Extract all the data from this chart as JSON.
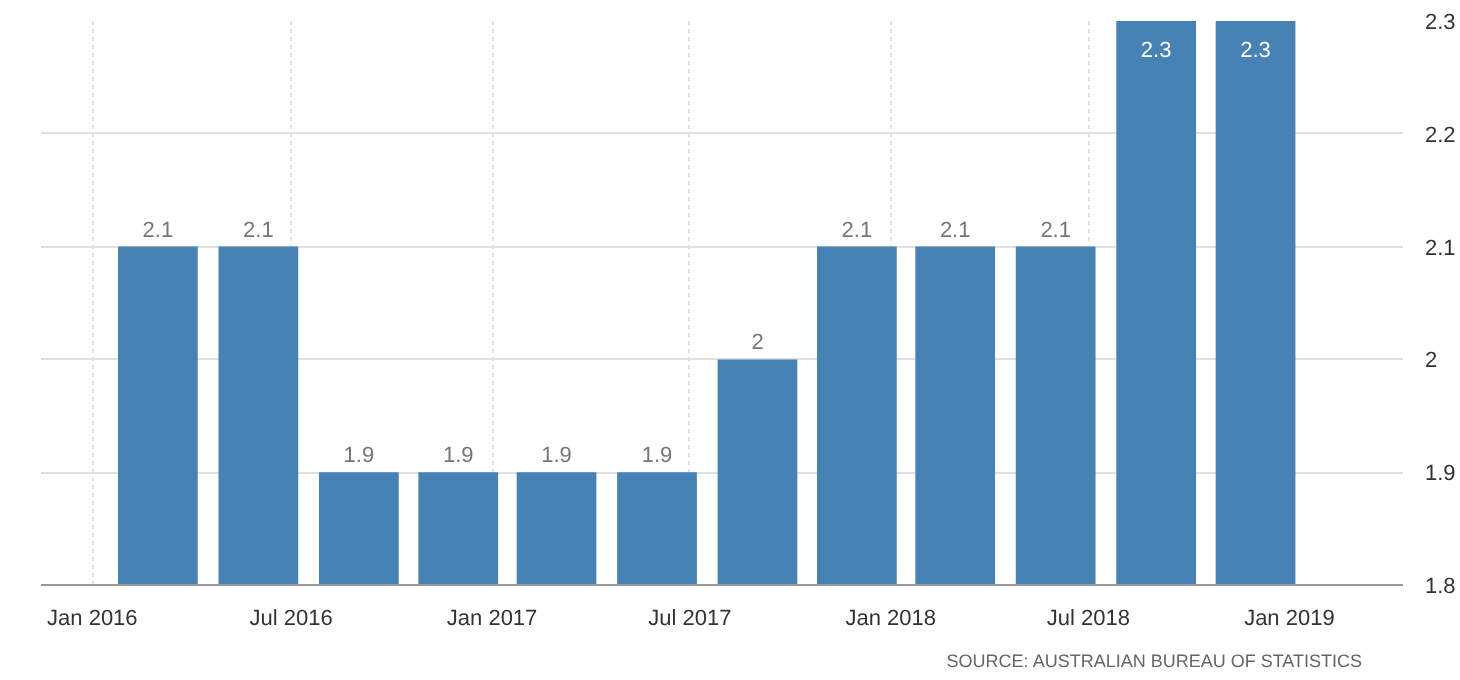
{
  "chart_data": {
    "type": "bar",
    "x": [
      "2016-03",
      "2016-06",
      "2016-09",
      "2016-12",
      "2017-03",
      "2017-06",
      "2017-09",
      "2017-12",
      "2018-03",
      "2018-06",
      "2018-09",
      "2018-12"
    ],
    "values": [
      2.1,
      2.1,
      1.9,
      1.9,
      1.9,
      1.9,
      2,
      2.1,
      2.1,
      2.1,
      2.3,
      2.3
    ],
    "color": "#4682b4",
    "data_labels": true,
    "xlim": [
      "2015-11-15",
      "2019-04-15"
    ],
    "xticks": [
      {
        "value": "2016-01",
        "label": "Jan 2016"
      },
      {
        "value": "2016-07",
        "label": "Jul 2016"
      },
      {
        "value": "2017-01",
        "label": "Jan 2017"
      },
      {
        "value": "2017-07",
        "label": "Jul 2017"
      },
      {
        "value": "2018-01",
        "label": "Jan 2018"
      },
      {
        "value": "2018-07",
        "label": "Jul 2018"
      },
      {
        "value": "2019-01",
        "label": "Jan 2019"
      }
    ],
    "ylim": [
      1.8,
      2.3
    ],
    "yticks": [
      1.8,
      1.9,
      2,
      2.1,
      2.2,
      2.3
    ],
    "grid": true,
    "annotations": [
      "SOURCE: AUSTRALIAN BUREAU OF STATISTICS"
    ]
  }
}
